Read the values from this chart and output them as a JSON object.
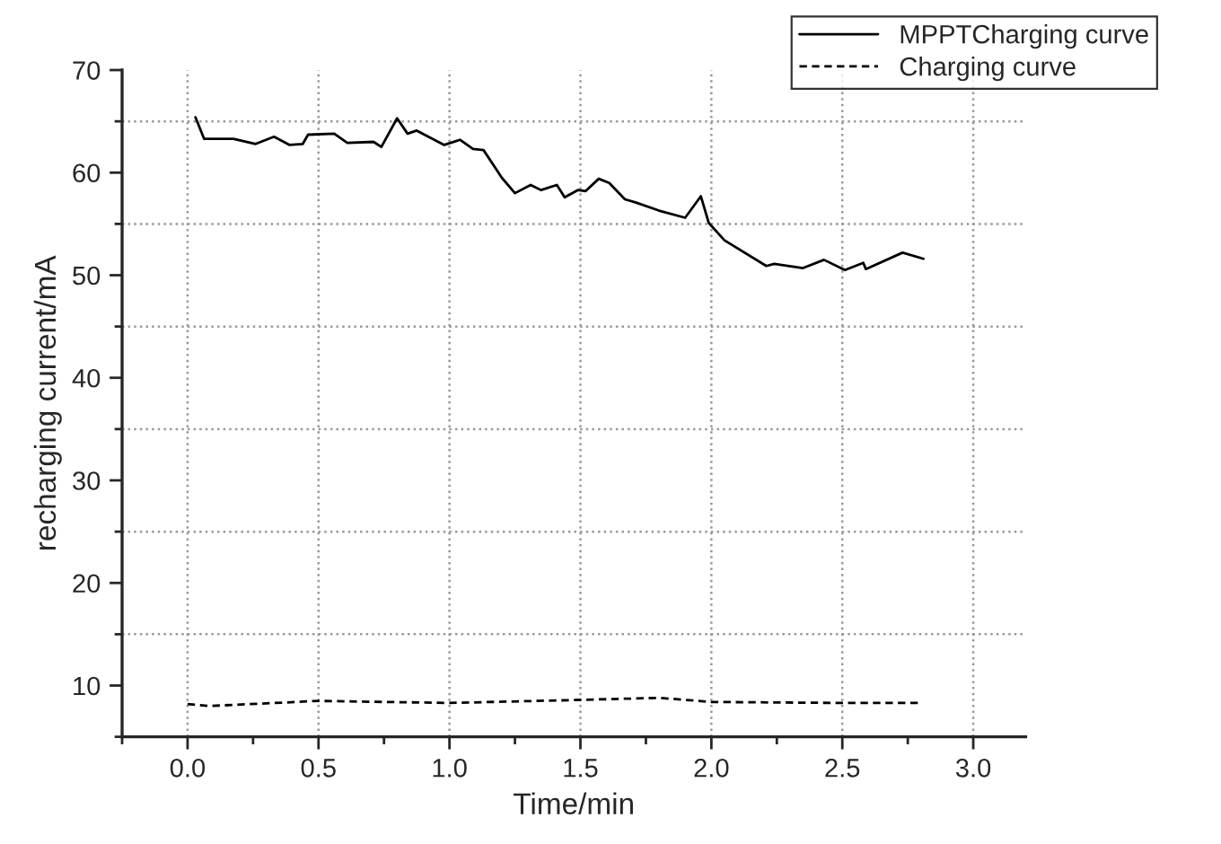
{
  "chart_data": {
    "type": "line",
    "xlabel": "Time/min",
    "ylabel": "recharging current/mA",
    "xlim": [
      -0.25,
      3.2
    ],
    "ylim": [
      5,
      70
    ],
    "xticks": [
      {
        "value": -0.25,
        "label": null
      },
      {
        "value": 0.0,
        "label": "0.0"
      },
      {
        "value": 0.25,
        "label": null
      },
      {
        "value": 0.5,
        "label": "0.5"
      },
      {
        "value": 0.75,
        "label": null
      },
      {
        "value": 1.0,
        "label": "1.0"
      },
      {
        "value": 1.25,
        "label": null
      },
      {
        "value": 1.5,
        "label": "1.5"
      },
      {
        "value": 1.75,
        "label": null
      },
      {
        "value": 2.0,
        "label": "2.0"
      },
      {
        "value": 2.25,
        "label": null
      },
      {
        "value": 2.5,
        "label": "2.5"
      },
      {
        "value": 2.75,
        "label": null
      },
      {
        "value": 3.0,
        "label": "3.0"
      }
    ],
    "yticks": [
      {
        "value": 5,
        "label": null
      },
      10,
      {
        "value": 15,
        "label": null
      },
      20,
      {
        "value": 25,
        "label": null
      },
      30,
      {
        "value": 35,
        "label": null
      },
      40,
      {
        "value": 45,
        "label": null
      },
      50,
      {
        "value": 55,
        "label": null
      },
      60,
      {
        "value": 65,
        "label": null
      },
      70
    ],
    "grid": true,
    "legend": "top right",
    "series": [
      {
        "name": "MPPTCharging curve",
        "color": "#000000",
        "line_style": "solid",
        "x": [
          0.03,
          0.063,
          0.175,
          0.26,
          0.33,
          0.39,
          0.44,
          0.46,
          0.56,
          0.61,
          0.71,
          0.74,
          0.8,
          0.84,
          0.875,
          0.98,
          1.04,
          1.09,
          1.13,
          1.2,
          1.25,
          1.31,
          1.35,
          1.41,
          1.44,
          1.49,
          1.52,
          1.57,
          1.61,
          1.67,
          1.71,
          1.8,
          1.9,
          1.96,
          1.99,
          2.05,
          2.21,
          2.24,
          2.35,
          2.43,
          2.51,
          2.58,
          2.59,
          2.73,
          2.81
        ],
        "values": [
          65.4,
          63.3,
          63.3,
          62.8,
          63.5,
          62.7,
          62.8,
          63.7,
          63.8,
          62.9,
          63.0,
          62.5,
          65.3,
          63.8,
          64.1,
          62.7,
          63.2,
          62.3,
          62.2,
          59.5,
          58.0,
          58.8,
          58.3,
          58.8,
          57.6,
          58.3,
          58.2,
          59.4,
          59.0,
          57.4,
          57.1,
          56.3,
          55.6,
          57.7,
          55.1,
          53.4,
          50.9,
          51.1,
          50.7,
          51.5,
          50.5,
          51.2,
          50.6,
          52.2,
          51.6
        ]
      },
      {
        "name": "Charging curve",
        "color": "#000000",
        "line_style": "dashed",
        "x": [
          0.0,
          0.08,
          0.5,
          1.0,
          1.5,
          1.8,
          2.0,
          2.5,
          2.8
        ],
        "values": [
          8.2,
          8.0,
          8.5,
          8.3,
          8.6,
          8.8,
          8.4,
          8.3,
          8.3
        ]
      }
    ]
  }
}
